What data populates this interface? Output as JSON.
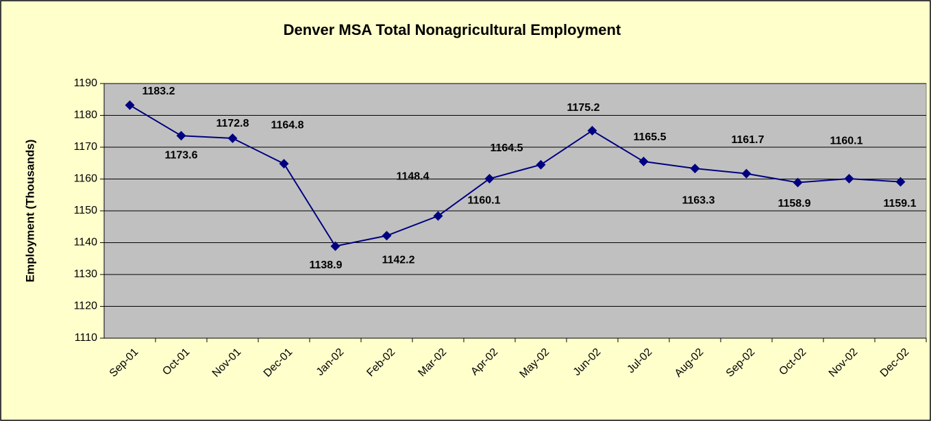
{
  "chart_data": {
    "type": "line",
    "title": "Denver MSA Total Nonagricultural Employment",
    "y_label": "Employment (Thousands)",
    "categories": [
      "Sep-01",
      "Oct-01",
      "Nov-01",
      "Dec-01",
      "Jan-02",
      "Feb-02",
      "Mar-02",
      "Apr-02",
      "May-02",
      "Jun-02",
      "Jul-02",
      "Aug-02",
      "Sep-02",
      "Oct-02",
      "Nov-02",
      "Dec-02"
    ],
    "series": [
      {
        "name": "Employment",
        "color": "#000080",
        "values": [
          1183.2,
          1173.6,
          1172.8,
          1164.8,
          1138.9,
          1142.2,
          1148.4,
          1160.1,
          1164.5,
          1175.2,
          1165.5,
          1163.3,
          1161.7,
          1158.9,
          1160.1,
          1159.1
        ]
      }
    ],
    "ylim": [
      1110,
      1190
    ],
    "yticks": [
      1110,
      1120,
      1130,
      1140,
      1150,
      1160,
      1170,
      1180,
      1190
    ],
    "grid": true
  }
}
